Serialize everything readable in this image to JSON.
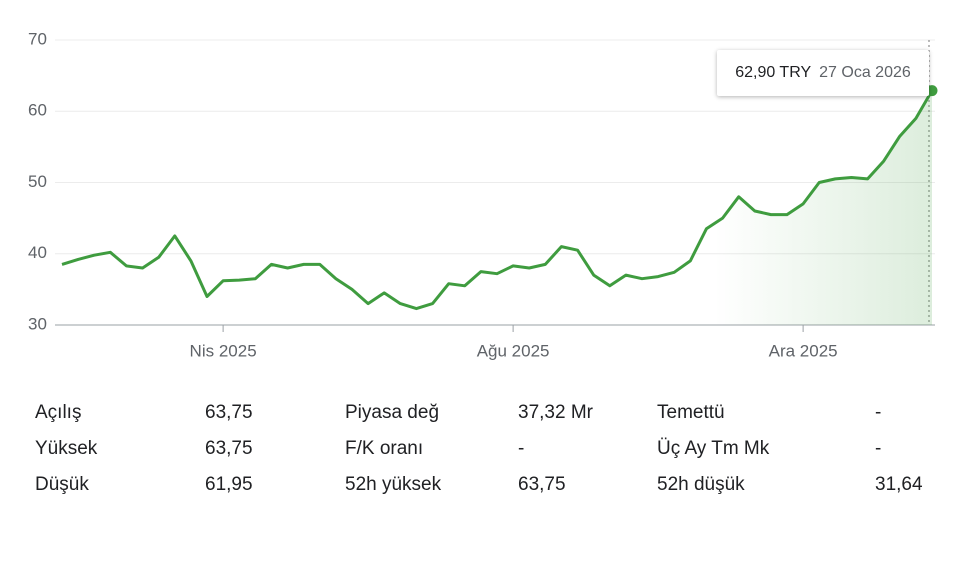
{
  "chart_data": {
    "type": "line",
    "categories": [
      null,
      null,
      null,
      null,
      null,
      null,
      null,
      null,
      null,
      null,
      "Nis 2025",
      null,
      null,
      null,
      null,
      null,
      null,
      null,
      null,
      null,
      null,
      null,
      null,
      null,
      null,
      null,
      null,
      null,
      "Ağu 2025",
      null,
      null,
      null,
      null,
      null,
      null,
      null,
      null,
      null,
      null,
      null,
      null,
      null,
      null,
      null,
      null,
      null,
      "Ara 2025",
      null,
      null,
      null,
      null,
      null,
      null,
      null,
      null
    ],
    "series": [
      {
        "color": "#3f9c3f",
        "values": [
          38.5,
          39.2,
          39.8,
          40.2,
          38.3,
          38.0,
          39.5,
          42.5,
          39.0,
          34.0,
          36.2,
          36.3,
          36.5,
          38.5,
          38.0,
          38.5,
          38.5,
          36.5,
          35.0,
          33.0,
          34.5,
          33.0,
          32.3,
          33.0,
          35.8,
          35.5,
          37.5,
          37.2,
          38.3,
          38.0,
          38.5,
          41.0,
          40.5,
          37.0,
          35.5,
          37.0,
          36.5,
          36.8,
          37.4,
          39.0,
          43.5,
          45.0,
          48.0,
          46.0,
          45.5,
          45.5,
          47.0,
          50.0,
          50.5,
          50.7,
          50.5,
          53.0,
          56.5,
          59.0,
          62.9
        ]
      }
    ],
    "ylim": [
      30,
      70
    ],
    "yticks": [
      30,
      40,
      50,
      60,
      70
    ],
    "grid": true,
    "tooltip": {
      "value": 62.9,
      "label": "62,90 TRY",
      "date": "27 Oca 2026"
    }
  },
  "stats": [
    [
      "Açılış",
      "63,75",
      "Piyasa değ",
      "37,32 Mr",
      "Temettü",
      "-"
    ],
    [
      "Yüksek",
      "63,75",
      "F/K oranı",
      "-",
      "Üç Ay Tm Mk",
      "-"
    ],
    [
      "Düşük",
      "61,95",
      "52h yüksek",
      "63,75",
      "52h düşük",
      "31,64"
    ]
  ]
}
